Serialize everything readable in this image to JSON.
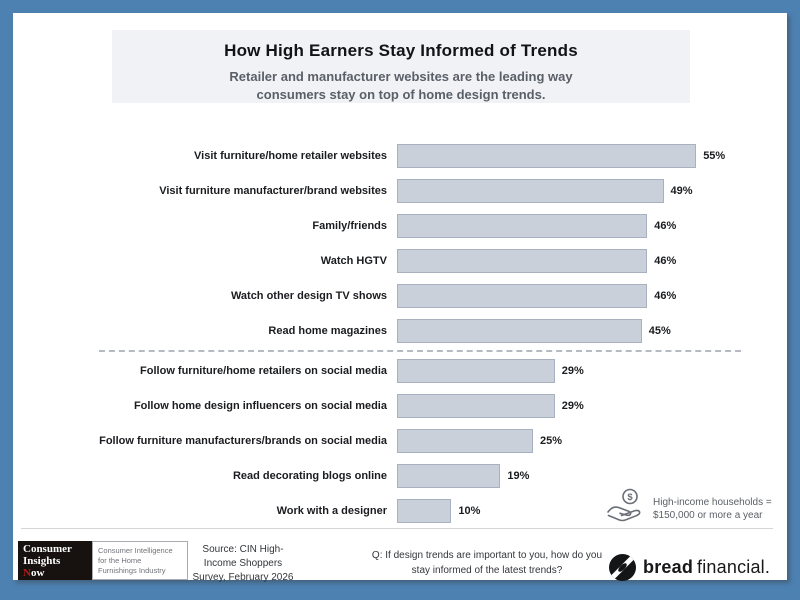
{
  "header": {
    "title": "How High Earners Stay Informed of Trends",
    "subtitle_lines": [
      "Retailer and manufacturer websites are the leading way",
      "consumers stay on top of home design trends."
    ]
  },
  "chart_data": {
    "type": "bar",
    "orientation": "horizontal",
    "title": "How High Earners Stay Informed of Trends",
    "categories": [
      "Visit furniture/home retailer websites",
      "Visit furniture manufacturer/brand websites",
      "Family/friends",
      "Watch HGTV",
      "Watch other design TV shows",
      "Read home magazines",
      "Follow furniture/home retailers on social media",
      "Follow home design influencers on social media",
      "Follow furniture manufacturers/brands on social media",
      "Read decorating blogs online",
      "Work with a designer"
    ],
    "values": [
      55,
      49,
      46,
      46,
      46,
      45,
      29,
      29,
      25,
      19,
      10
    ],
    "value_suffix": "%",
    "separator_after_index": 5,
    "data_labels": true,
    "gridlines": false,
    "xlim": [
      0,
      60
    ],
    "bar_color": "#c9d0da",
    "bar_border_color": "#a8b1bf"
  },
  "annotation": {
    "icon": "coin-in-hand-icon",
    "lines": [
      "High-income households =",
      "$150,000 or more a year"
    ]
  },
  "footer": {
    "cin_logo": {
      "line1": "Consumer",
      "line2": "Insights",
      "line3_accent": "N",
      "line3_rest": "ow"
    },
    "cin_tagline_lines": [
      "Consumer Intelligence",
      "for the Home",
      "Furnishings Industry"
    ],
    "source_lines": [
      "Source: CIN High-",
      "Income Shoppers",
      "Survey, February 2026"
    ],
    "question_lines": [
      "Q: If design trends are important to you, how do you",
      "stay informed of the latest trends?"
    ],
    "brand": {
      "bold": "bread",
      "regular": "financial."
    }
  },
  "colors": {
    "frame_border": "#4d81b1",
    "title_panel_bg": "#f1f2f6",
    "subtitle_text": "#5a6068",
    "bar_fill": "#c9d0da",
    "bar_border": "#a8b1bf",
    "cin_accent_red": "#b01e1e"
  }
}
